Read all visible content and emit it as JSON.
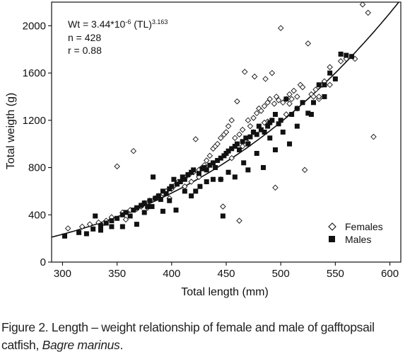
{
  "chart_data": {
    "type": "scatter",
    "xlabel": "Total length (mm)",
    "ylabel": "Total weigth (g)",
    "xlim": [
      290,
      610
    ],
    "ylim": [
      0,
      2200
    ],
    "xticks": [
      300,
      350,
      400,
      450,
      500,
      550,
      600
    ],
    "yticks": [
      0,
      400,
      800,
      1200,
      1600,
      2000
    ],
    "grid": false,
    "legend_position": "bottom-right",
    "annotation": {
      "equation_base": "Wt = 3.44*10",
      "equation_exp1": "-6",
      "equation_mid": " (TL)",
      "equation_exp2": "3.163",
      "n": "n = 428",
      "r": "r = 0.88"
    },
    "fit": {
      "type": "power",
      "a": 3.44e-06,
      "b": 3.163,
      "x_range": [
        290,
        610
      ]
    },
    "series": [
      {
        "name": "Females",
        "marker": "open-diamond",
        "color": "#111111",
        "points": [
          [
            305,
            285
          ],
          [
            325,
            320
          ],
          [
            333,
            335
          ],
          [
            340,
            350
          ],
          [
            345,
            380
          ],
          [
            350,
            810
          ],
          [
            355,
            420
          ],
          [
            362,
            440
          ],
          [
            365,
            940
          ],
          [
            368,
            450
          ],
          [
            372,
            470
          ],
          [
            375,
            500
          ],
          [
            380,
            520
          ],
          [
            385,
            540
          ],
          [
            388,
            560
          ],
          [
            392,
            580
          ],
          [
            395,
            600
          ],
          [
            400,
            620
          ],
          [
            403,
            650
          ],
          [
            406,
            680
          ],
          [
            410,
            700
          ],
          [
            413,
            720
          ],
          [
            416,
            740
          ],
          [
            420,
            760
          ],
          [
            422,
            1040
          ],
          [
            425,
            780
          ],
          [
            428,
            800
          ],
          [
            430,
            820
          ],
          [
            432,
            860
          ],
          [
            435,
            900
          ],
          [
            438,
            960
          ],
          [
            440,
            980
          ],
          [
            442,
            1000
          ],
          [
            445,
            1050
          ],
          [
            448,
            1080
          ],
          [
            450,
            1100
          ],
          [
            452,
            1150
          ],
          [
            455,
            1200
          ],
          [
            458,
            1050
          ],
          [
            460,
            1360
          ],
          [
            462,
            1080
          ],
          [
            465,
            1120
          ],
          [
            467,
            1610
          ],
          [
            470,
            1200
          ],
          [
            472,
            1150
          ],
          [
            475,
            1220
          ],
          [
            476,
            1570
          ],
          [
            478,
            1260
          ],
          [
            480,
            1300
          ],
          [
            482,
            1280
          ],
          [
            485,
            1320
          ],
          [
            486,
            1550
          ],
          [
            488,
            1350
          ],
          [
            490,
            1380
          ],
          [
            492,
            1600
          ],
          [
            494,
            1340
          ],
          [
            496,
            1400
          ],
          [
            498,
            1370
          ],
          [
            500,
            1980
          ],
          [
            502,
            1350
          ],
          [
            505,
            1380
          ],
          [
            508,
            1420
          ],
          [
            510,
            1380
          ],
          [
            512,
            1450
          ],
          [
            515,
            1400
          ],
          [
            518,
            1500
          ],
          [
            520,
            1480
          ],
          [
            522,
            780
          ],
          [
            525,
            1850
          ],
          [
            528,
            1420
          ],
          [
            530,
            1400
          ],
          [
            532,
            1460
          ],
          [
            535,
            1380
          ],
          [
            538,
            1500
          ],
          [
            540,
            1530
          ],
          [
            545,
            1650
          ],
          [
            555,
            1700
          ],
          [
            560,
            1720
          ],
          [
            568,
            1720
          ],
          [
            575,
            2180
          ],
          [
            580,
            2110
          ],
          [
            585,
            1060
          ],
          [
            462,
            350
          ],
          [
            488,
            1190
          ],
          [
            495,
            630
          ],
          [
            508,
            1340
          ],
          [
            470,
            1010
          ],
          [
            455,
            880
          ],
          [
            445,
            700
          ],
          [
            418,
            680
          ],
          [
            398,
            540
          ],
          [
            378,
            460
          ],
          [
            358,
            360
          ],
          [
            338,
            330
          ],
          [
            318,
            300
          ],
          [
            447,
            470
          ],
          [
            475,
            1100
          ],
          [
            465,
            980
          ],
          [
            485,
            1180
          ],
          [
            505,
            1250
          ],
          [
            515,
            1300
          ],
          [
            535,
            1400
          ],
          [
            545,
            1500
          ],
          [
            425,
            720
          ],
          [
            412,
            640
          ]
        ]
      },
      {
        "name": "Males",
        "marker": "filled-square",
        "color": "#111111",
        "points": [
          [
            302,
            220
          ],
          [
            315,
            250
          ],
          [
            322,
            240
          ],
          [
            328,
            280
          ],
          [
            330,
            390
          ],
          [
            335,
            310
          ],
          [
            340,
            330
          ],
          [
            345,
            350
          ],
          [
            350,
            370
          ],
          [
            355,
            400
          ],
          [
            358,
            420
          ],
          [
            362,
            390
          ],
          [
            365,
            440
          ],
          [
            368,
            460
          ],
          [
            372,
            480
          ],
          [
            375,
            500
          ],
          [
            378,
            470
          ],
          [
            380,
            520
          ],
          [
            383,
            720
          ],
          [
            385,
            540
          ],
          [
            388,
            560
          ],
          [
            390,
            530
          ],
          [
            392,
            600
          ],
          [
            395,
            580
          ],
          [
            398,
            620
          ],
          [
            400,
            640
          ],
          [
            402,
            700
          ],
          [
            405,
            660
          ],
          [
            408,
            680
          ],
          [
            410,
            720
          ],
          [
            412,
            700
          ],
          [
            415,
            740
          ],
          [
            418,
            760
          ],
          [
            420,
            780
          ],
          [
            422,
            600
          ],
          [
            425,
            750
          ],
          [
            428,
            790
          ],
          [
            430,
            800
          ],
          [
            432,
            780
          ],
          [
            435,
            820
          ],
          [
            438,
            840
          ],
          [
            440,
            800
          ],
          [
            442,
            860
          ],
          [
            445,
            880
          ],
          [
            447,
            390
          ],
          [
            448,
            900
          ],
          [
            450,
            920
          ],
          [
            452,
            940
          ],
          [
            455,
            960
          ],
          [
            458,
            980
          ],
          [
            460,
            1000
          ],
          [
            462,
            950
          ],
          [
            465,
            1020
          ],
          [
            468,
            1050
          ],
          [
            470,
            1000
          ],
          [
            472,
            1060
          ],
          [
            475,
            1100
          ],
          [
            478,
            1080
          ],
          [
            480,
            1150
          ],
          [
            482,
            1120
          ],
          [
            485,
            1100
          ],
          [
            488,
            1150
          ],
          [
            490,
            1180
          ],
          [
            492,
            1200
          ],
          [
            495,
            1250
          ],
          [
            498,
            1170
          ],
          [
            500,
            1200
          ],
          [
            505,
            1380
          ],
          [
            510,
            1250
          ],
          [
            515,
            1300
          ],
          [
            520,
            1350
          ],
          [
            525,
            1260
          ],
          [
            530,
            1350
          ],
          [
            535,
            1500
          ],
          [
            540,
            1500
          ],
          [
            545,
            1600
          ],
          [
            555,
            1760
          ],
          [
            560,
            1750
          ],
          [
            565,
            1740
          ],
          [
            368,
            320
          ],
          [
            375,
            420
          ],
          [
            392,
            430
          ],
          [
            404,
            440
          ],
          [
            418,
            560
          ],
          [
            432,
            680
          ],
          [
            445,
            700
          ],
          [
            458,
            720
          ],
          [
            470,
            780
          ],
          [
            484,
            800
          ],
          [
            495,
            950
          ],
          [
            508,
            1000
          ],
          [
            345,
            300
          ],
          [
            335,
            270
          ],
          [
            355,
            300
          ],
          [
            382,
            470
          ],
          [
            398,
            520
          ],
          [
            412,
            600
          ],
          [
            426,
            640
          ],
          [
            438,
            700
          ],
          [
            452,
            760
          ],
          [
            466,
            840
          ],
          [
            478,
            920
          ],
          [
            490,
            1050
          ],
          [
            502,
            1100
          ],
          [
            515,
            1150
          ],
          [
            528,
            1250
          ],
          [
            540,
            1400
          ],
          [
            550,
            1550
          ]
        ]
      }
    ]
  },
  "caption": {
    "line1": "Figure 2. Length – weight relationship of female and male of gafftopsail",
    "line2_prefix": "catfish, ",
    "line2_italic": "Bagre marinus",
    "line2_suffix": "."
  }
}
